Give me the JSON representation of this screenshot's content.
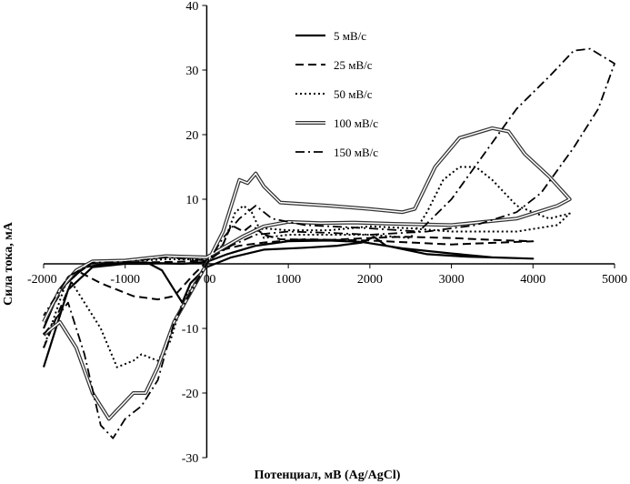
{
  "chart_data": {
    "type": "line",
    "title": "",
    "xlabel": "Потенциал, мВ (Ag/AgCl)",
    "ylabel": "Сила тока, мА",
    "xlim": [
      -2000,
      5000
    ],
    "ylim": [
      -30,
      40
    ],
    "xticks": [
      -2000,
      -1000,
      0,
      1000,
      2000,
      3000,
      4000,
      5000
    ],
    "yticks": [
      -30,
      -20,
      -10,
      10,
      20,
      30,
      40
    ],
    "origin_label": "0",
    "legend_position": "top-center",
    "series": [
      {
        "name": "5 мВ/с",
        "style": "solid",
        "points": [
          [
            -2000,
            -16
          ],
          [
            -1700,
            -4
          ],
          [
            -1400,
            -0.5
          ],
          [
            -1000,
            0
          ],
          [
            -700,
            0
          ],
          [
            -550,
            -1
          ],
          [
            -400,
            -4
          ],
          [
            -300,
            -6
          ],
          [
            -200,
            -3
          ],
          [
            0,
            -0.5
          ],
          [
            300,
            1
          ],
          [
            700,
            2.2
          ],
          [
            1200,
            2.5
          ],
          [
            1600,
            2.8
          ],
          [
            1900,
            3.3
          ],
          [
            2050,
            4.2
          ],
          [
            2200,
            2.8
          ],
          [
            2700,
            1.5
          ],
          [
            3200,
            1.1
          ],
          [
            4000,
            0.8
          ],
          [
            3500,
            1
          ],
          [
            3000,
            1.6
          ],
          [
            2400,
            2.4
          ],
          [
            1900,
            3.4
          ],
          [
            1500,
            3.6
          ],
          [
            1000,
            3.5
          ],
          [
            600,
            2.8
          ],
          [
            250,
            1.5
          ],
          [
            0,
            0.3
          ],
          [
            -300,
            0
          ],
          [
            -800,
            0.2
          ],
          [
            -1100,
            0.2
          ],
          [
            -1500,
            -0.5
          ],
          [
            -1800,
            -4
          ],
          [
            -2000,
            -10
          ]
        ]
      },
      {
        "name": "25 мВ/с",
        "style": "dashed",
        "points": [
          [
            -2000,
            -13
          ],
          [
            -1600,
            -1
          ],
          [
            -1300,
            -3
          ],
          [
            -900,
            -5
          ],
          [
            -600,
            -5.5
          ],
          [
            -400,
            -5
          ],
          [
            -150,
            -1.5
          ],
          [
            0,
            0.3
          ],
          [
            200,
            2.2
          ],
          [
            400,
            2.8
          ],
          [
            700,
            3.3
          ],
          [
            1200,
            3.8
          ],
          [
            2000,
            3.6
          ],
          [
            3000,
            3
          ],
          [
            4000,
            3.5
          ],
          [
            3500,
            3.7
          ],
          [
            3000,
            4
          ],
          [
            2400,
            4.2
          ],
          [
            2000,
            4
          ],
          [
            1500,
            3.7
          ],
          [
            900,
            3.8
          ],
          [
            700,
            4.5
          ],
          [
            550,
            6
          ],
          [
            450,
            5
          ],
          [
            300,
            6
          ],
          [
            200,
            3
          ],
          [
            0,
            0.5
          ],
          [
            -400,
            0.3
          ],
          [
            -1000,
            0.2
          ],
          [
            -1400,
            0.2
          ],
          [
            -1700,
            -2.5
          ],
          [
            -2000,
            -9
          ]
        ]
      },
      {
        "name": "50 мВ/с",
        "style": "dotted",
        "points": [
          [
            -2000,
            -13
          ],
          [
            -1700,
            -2
          ],
          [
            -1500,
            -6
          ],
          [
            -1300,
            -10
          ],
          [
            -1100,
            -16
          ],
          [
            -900,
            -15
          ],
          [
            -800,
            -14
          ],
          [
            -600,
            -15
          ],
          [
            -450,
            -12
          ],
          [
            -300,
            -6
          ],
          [
            0,
            0
          ],
          [
            200,
            3
          ],
          [
            350,
            8
          ],
          [
            450,
            9
          ],
          [
            550,
            8
          ],
          [
            700,
            4
          ],
          [
            1000,
            4.5
          ],
          [
            2000,
            4.5
          ],
          [
            2500,
            4
          ],
          [
            2700,
            8
          ],
          [
            2900,
            13
          ],
          [
            3100,
            15
          ],
          [
            3300,
            15
          ],
          [
            3500,
            13
          ],
          [
            3800,
            9
          ],
          [
            4200,
            7
          ],
          [
            4450,
            7.8
          ],
          [
            4300,
            6
          ],
          [
            3800,
            5
          ],
          [
            3000,
            5
          ],
          [
            2500,
            5.5
          ],
          [
            2000,
            5.8
          ],
          [
            1500,
            5.2
          ],
          [
            1000,
            5.2
          ],
          [
            700,
            5.5
          ],
          [
            500,
            4.5
          ],
          [
            300,
            3
          ],
          [
            0,
            0.7
          ],
          [
            -500,
            0.7
          ],
          [
            -1000,
            0.4
          ],
          [
            -1400,
            0.2
          ],
          [
            -1700,
            -2
          ],
          [
            -2000,
            -9
          ]
        ]
      },
      {
        "name": "100 мВ/с",
        "style": "double",
        "points": [
          [
            -2000,
            -11
          ],
          [
            -1800,
            -9
          ],
          [
            -1600,
            -13
          ],
          [
            -1400,
            -20
          ],
          [
            -1200,
            -24
          ],
          [
            -1050,
            -22
          ],
          [
            -900,
            -20
          ],
          [
            -750,
            -20
          ],
          [
            -600,
            -16
          ],
          [
            -400,
            -9
          ],
          [
            0,
            0
          ],
          [
            200,
            5
          ],
          [
            400,
            13
          ],
          [
            500,
            12.5
          ],
          [
            600,
            14
          ],
          [
            700,
            12
          ],
          [
            900,
            9.5
          ],
          [
            1500,
            9
          ],
          [
            2000,
            8.5
          ],
          [
            2400,
            8
          ],
          [
            2550,
            8.5
          ],
          [
            2800,
            15
          ],
          [
            3100,
            19.5
          ],
          [
            3500,
            21
          ],
          [
            3700,
            20.5
          ],
          [
            3900,
            17
          ],
          [
            4200,
            13.5
          ],
          [
            4450,
            10
          ],
          [
            4300,
            9
          ],
          [
            3800,
            7
          ],
          [
            3000,
            6
          ],
          [
            2300,
            6.2
          ],
          [
            1800,
            6.4
          ],
          [
            1400,
            6.3
          ],
          [
            1000,
            6.5
          ],
          [
            700,
            5.8
          ],
          [
            450,
            4.3
          ],
          [
            200,
            2.5
          ],
          [
            0,
            1
          ],
          [
            -500,
            1.2
          ],
          [
            -1000,
            0.5
          ],
          [
            -1400,
            0.4
          ],
          [
            -1600,
            -1
          ],
          [
            -1800,
            -4
          ],
          [
            -2000,
            -9
          ]
        ]
      },
      {
        "name": "150 мВ/с",
        "style": "dash-dot",
        "points": [
          [
            -2000,
            -11
          ],
          [
            -1700,
            -6
          ],
          [
            -1500,
            -14
          ],
          [
            -1300,
            -25
          ],
          [
            -1150,
            -27
          ],
          [
            -1000,
            -24
          ],
          [
            -800,
            -22
          ],
          [
            -600,
            -18
          ],
          [
            -400,
            -9
          ],
          [
            0,
            0
          ],
          [
            200,
            4
          ],
          [
            400,
            7
          ],
          [
            600,
            9
          ],
          [
            800,
            7
          ],
          [
            1200,
            6
          ],
          [
            2000,
            5.5
          ],
          [
            2600,
            5
          ],
          [
            3000,
            10
          ],
          [
            3400,
            17
          ],
          [
            3800,
            24
          ],
          [
            4200,
            29
          ],
          [
            4500,
            33
          ],
          [
            4700,
            33.3
          ],
          [
            5000,
            31
          ],
          [
            4800,
            24
          ],
          [
            4500,
            18
          ],
          [
            4100,
            11
          ],
          [
            3800,
            8
          ],
          [
            3300,
            6
          ],
          [
            2700,
            5
          ],
          [
            2000,
            4.5
          ],
          [
            1500,
            4.8
          ],
          [
            1000,
            5
          ],
          [
            600,
            4.5
          ],
          [
            300,
            2.8
          ],
          [
            0,
            0.5
          ],
          [
            -500,
            1
          ],
          [
            -1000,
            0.3
          ],
          [
            -1400,
            0.2
          ],
          [
            -1700,
            -2
          ],
          [
            -2000,
            -8
          ]
        ]
      }
    ]
  }
}
